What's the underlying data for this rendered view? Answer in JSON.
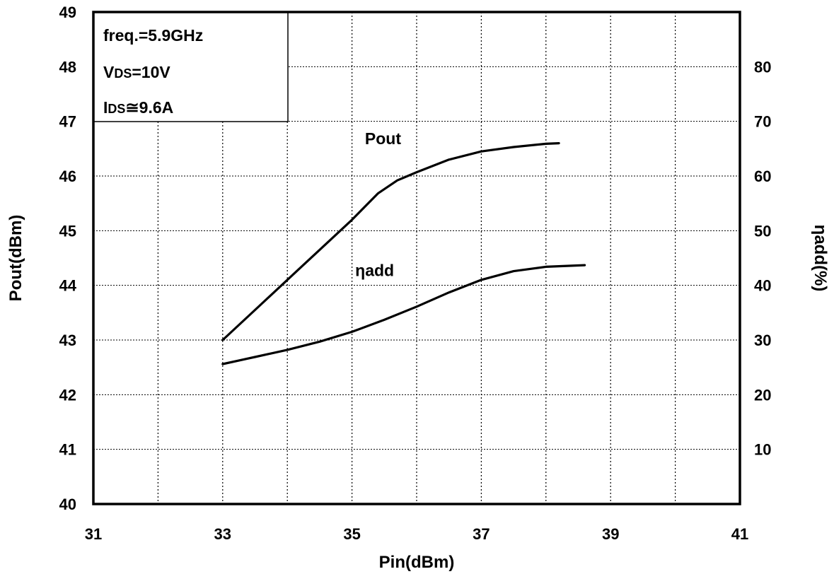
{
  "chart_data": {
    "type": "line",
    "xlabel": "Pin(dBm)",
    "ylabel": "Pout(dBm)",
    "y2label": "ηadd(%)",
    "xlim": [
      31,
      41
    ],
    "ylim": [
      40,
      49
    ],
    "y2lim": [
      0,
      90
    ],
    "x_ticks": [
      "31",
      "33",
      "35",
      "37",
      "39",
      "41"
    ],
    "y_ticks": [
      "40",
      "41",
      "42",
      "43",
      "44",
      "45",
      "46",
      "47",
      "48",
      "49"
    ],
    "y2_ticks": [
      "10",
      "20",
      "30",
      "40",
      "50",
      "60",
      "70",
      "80"
    ],
    "grid": true,
    "annotation_box": {
      "line1": "freq.=5.9GHz",
      "line2_prefix": "V",
      "line2_sub": "DS",
      "line2_suffix": "=10V",
      "line3_prefix": "I",
      "line3_sub": "DS",
      "line3_suffix": "≅9.6A"
    },
    "series": [
      {
        "name": "Pout",
        "axis": "left",
        "x": [
          33.0,
          33.5,
          34.0,
          34.5,
          35.0,
          35.4,
          35.7,
          36.0,
          36.5,
          37.0,
          37.5,
          38.0,
          38.2
        ],
        "values": [
          43.0,
          43.55,
          44.1,
          44.65,
          45.2,
          45.68,
          45.92,
          46.07,
          46.3,
          46.45,
          46.53,
          46.59,
          46.6
        ]
      },
      {
        "name": "ηadd",
        "axis": "right",
        "x": [
          33.0,
          33.5,
          34.0,
          34.5,
          35.0,
          35.5,
          36.0,
          36.5,
          37.0,
          37.5,
          38.0,
          38.6
        ],
        "values": [
          25.6,
          26.9,
          28.2,
          29.7,
          31.5,
          33.7,
          36.1,
          38.7,
          41.0,
          42.6,
          43.4,
          43.7
        ]
      }
    ]
  }
}
